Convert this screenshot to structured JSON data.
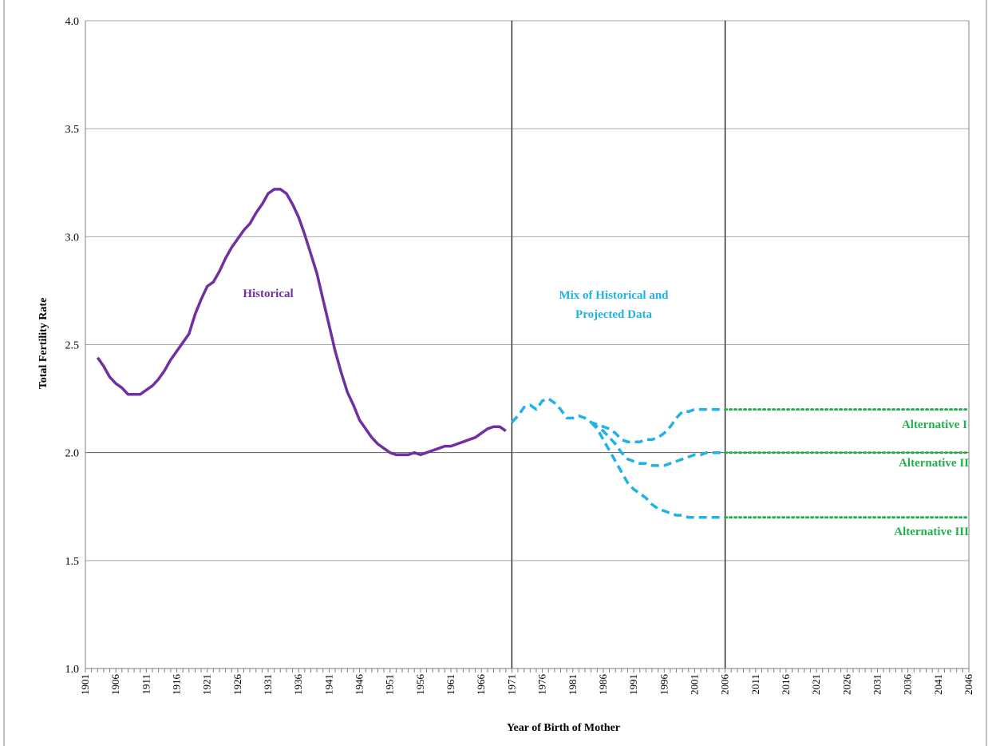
{
  "chart_data": {
    "type": "line",
    "title": "",
    "xlabel": "Year of Birth of Mother",
    "ylabel": "Total Fertility Rate",
    "xlim": [
      1901,
      2046
    ],
    "ylim": [
      1.0,
      4.0
    ],
    "y_ticks": [
      "1.0",
      "1.5",
      "2.0",
      "2.5",
      "3.0",
      "3.5",
      "4.0"
    ],
    "x_ticks": [
      "1901",
      "1906",
      "1911",
      "1916",
      "1921",
      "1926",
      "1931",
      "1936",
      "1941",
      "1946",
      "1951",
      "1956",
      "1961",
      "1966",
      "1971",
      "1976",
      "1981",
      "1986",
      "1991",
      "1996",
      "2001",
      "2006",
      "2011",
      "2016",
      "2021",
      "2026",
      "2031",
      "2036",
      "2041",
      "2046"
    ],
    "grid": true,
    "vertical_lines": [
      1971,
      2006
    ],
    "colors": {
      "historical": "#7030a0",
      "projected": "#1fb2e6",
      "alternatives": "#22b04c",
      "grid": "#a6a6a6"
    },
    "series": [
      {
        "style": "solid",
        "x": [
          1903,
          1904,
          1905,
          1906,
          1907,
          1908,
          1909,
          1910,
          1911,
          1912,
          1913,
          1914,
          1915,
          1916,
          1917,
          1918,
          1919,
          1920,
          1921,
          1922,
          1923,
          1924,
          1925,
          1926,
          1927,
          1928,
          1929,
          1930,
          1931,
          1932,
          1933,
          1934,
          1935,
          1936,
          1937,
          1938,
          1939,
          1940,
          1941,
          1942,
          1943,
          1944,
          1945,
          1946,
          1947,
          1948,
          1949,
          1950,
          1951,
          1952,
          1953,
          1954,
          1955,
          1956,
          1957,
          1958,
          1959,
          1960,
          1961,
          1962,
          1963,
          1964,
          1965,
          1966,
          1967,
          1968,
          1969,
          1970
        ],
        "y": [
          2.44,
          2.4,
          2.35,
          2.32,
          2.3,
          2.27,
          2.27,
          2.27,
          2.29,
          2.31,
          2.34,
          2.38,
          2.43,
          2.47,
          2.51,
          2.55,
          2.64,
          2.71,
          2.77,
          2.79,
          2.84,
          2.9,
          2.95,
          2.99,
          3.03,
          3.06,
          3.11,
          3.15,
          3.2,
          3.22,
          3.22,
          3.2,
          3.15,
          3.09,
          3.01,
          2.92,
          2.83,
          2.71,
          2.59,
          2.47,
          2.37,
          2.28,
          2.22,
          2.15,
          2.11,
          2.07,
          2.04,
          2.02,
          2.0,
          1.99,
          1.99,
          1.99,
          2.0,
          1.99,
          2.0,
          2.01,
          2.02,
          2.03,
          2.03,
          2.04,
          2.05,
          2.06,
          2.07,
          2.09,
          2.11,
          2.12,
          2.12,
          2.1
        ]
      },
      {
        "style": "dashed",
        "x": [
          1971,
          1972,
          1973,
          1974,
          1975,
          1976,
          1977,
          1978,
          1979,
          1980,
          1981,
          1982,
          1983,
          1984,
          1985,
          1986,
          1987,
          1988,
          1989,
          1990,
          1991,
          1992,
          1993,
          1994,
          1995,
          1996,
          1997,
          1998,
          1999,
          2000,
          2001,
          2002,
          2003,
          2004,
          2005,
          2006
        ],
        "y": [
          2.14,
          2.17,
          2.21,
          2.22,
          2.2,
          2.24,
          2.25,
          2.23,
          2.2,
          2.16,
          2.16,
          2.17,
          2.16,
          2.14,
          2.13,
          2.12,
          2.11,
          2.09,
          2.06,
          2.05,
          2.05,
          2.05,
          2.06,
          2.06,
          2.07,
          2.09,
          2.12,
          2.16,
          2.19,
          2.19,
          2.2,
          2.2,
          2.2,
          2.2,
          2.2,
          2.2
        ]
      },
      {
        "style": "dashed",
        "x": [
          1984,
          1985,
          1986,
          1987,
          1988,
          1989,
          1990,
          1991,
          1992,
          1993,
          1994,
          1995,
          1996,
          1997,
          1998,
          1999,
          2000,
          2001,
          2002,
          2003,
          2004,
          2005,
          2006
        ],
        "y": [
          2.14,
          2.12,
          2.1,
          2.07,
          2.04,
          2.0,
          1.97,
          1.96,
          1.95,
          1.95,
          1.94,
          1.94,
          1.94,
          1.95,
          1.96,
          1.97,
          1.98,
          1.99,
          1.99,
          2.0,
          2.0,
          2.0,
          2.0
        ]
      },
      {
        "style": "dashed",
        "x": [
          1984,
          1985,
          1986,
          1987,
          1988,
          1989,
          1990,
          1991,
          1992,
          1993,
          1994,
          1995,
          1996,
          1997,
          1998,
          1999,
          2000,
          2001,
          2002,
          2003,
          2004,
          2005,
          2006
        ],
        "y": [
          2.14,
          2.11,
          2.06,
          2.01,
          1.96,
          1.91,
          1.86,
          1.83,
          1.81,
          1.79,
          1.76,
          1.74,
          1.73,
          1.72,
          1.71,
          1.71,
          1.7,
          1.7,
          1.7,
          1.7,
          1.7,
          1.7,
          1.7
        ]
      },
      {
        "name": "Alternative I",
        "style": "dotted",
        "x": [
          2006,
          2046
        ],
        "y": [
          2.2,
          2.2
        ]
      },
      {
        "name": "Alternative II",
        "style": "dotted",
        "x": [
          2006,
          2046
        ],
        "y": [
          2.0,
          2.0
        ]
      },
      {
        "name": "Alternative III",
        "style": "dotted",
        "x": [
          2006,
          2046
        ],
        "y": [
          1.7,
          1.7
        ]
      }
    ],
    "annotations": [
      {
        "text": "Historical",
        "color": "#7030a0"
      },
      {
        "text": "Mix of Historical and",
        "color": "#1fb2e6"
      },
      {
        "text": "Projected Data",
        "color": "#1fb2e6"
      },
      {
        "text": "Alternative I",
        "color": "#22b04c"
      },
      {
        "text": "Alternative II",
        "color": "#22b04c"
      },
      {
        "text": "Alternative III",
        "color": "#22b04c"
      }
    ]
  }
}
